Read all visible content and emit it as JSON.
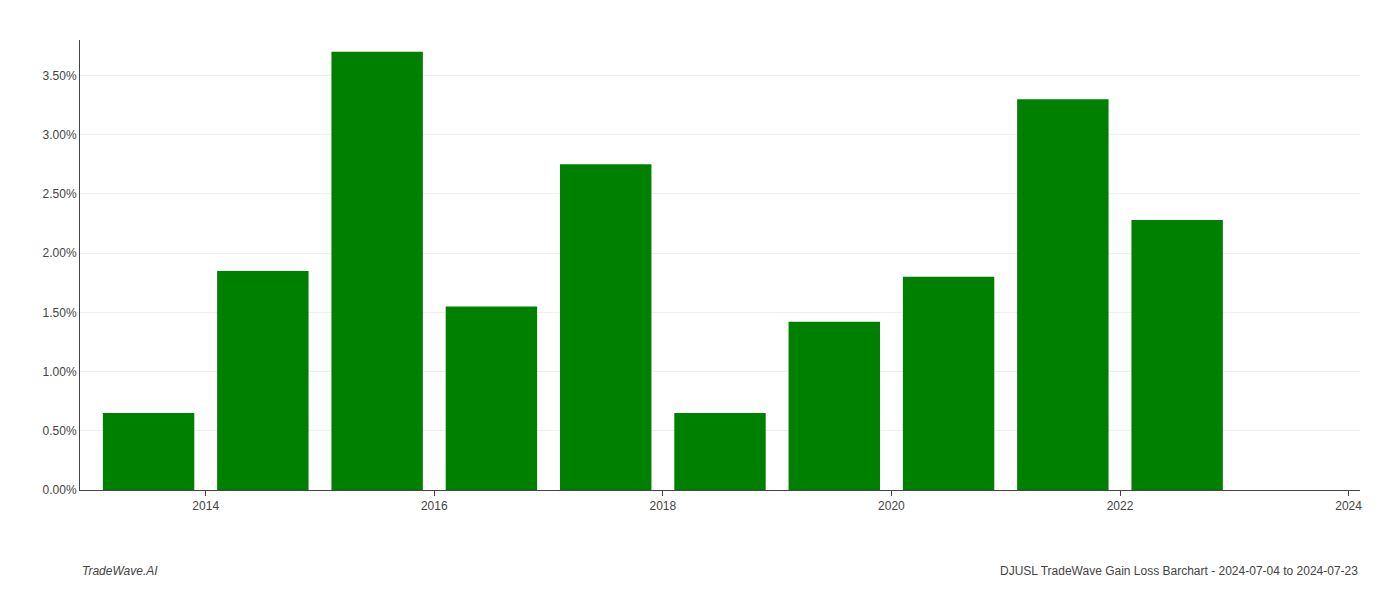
{
  "chart_data": {
    "type": "bar",
    "x": [
      2014,
      2015,
      2016,
      2017,
      2018,
      2019,
      2020,
      2021,
      2022,
      2023
    ],
    "values": [
      0.0065,
      0.0185,
      0.037,
      0.0155,
      0.0275,
      0.0065,
      0.0142,
      0.018,
      0.033,
      0.0228
    ],
    "color": "#008000",
    "xlim": [
      2013.4,
      2024.6
    ],
    "xticks": [
      {
        "value": 2014.5,
        "label": "2014"
      },
      {
        "value": 2016.5,
        "label": "2016"
      },
      {
        "value": 2018.5,
        "label": "2018"
      },
      {
        "value": 2020.5,
        "label": "2020"
      },
      {
        "value": 2022.5,
        "label": "2022"
      },
      {
        "value": 2024.5,
        "label": "2024"
      }
    ],
    "ylim": [
      0,
      0.038
    ],
    "yticks": [
      {
        "value": 0.0,
        "label": "0.00%"
      },
      {
        "value": 0.005,
        "label": "0.50%"
      },
      {
        "value": 0.01,
        "label": "1.00%"
      },
      {
        "value": 0.015,
        "label": "1.50%"
      },
      {
        "value": 0.02,
        "label": "2.00%"
      },
      {
        "value": 0.025,
        "label": "2.50%"
      },
      {
        "value": 0.03,
        "label": "3.00%"
      },
      {
        "value": 0.035,
        "label": "3.50%"
      }
    ],
    "grid": true,
    "annotations": [
      "TradeWave.AI",
      "DJUSL TradeWave Gain Loss Barchart - 2024-07-04 to 2024-07-23"
    ]
  }
}
